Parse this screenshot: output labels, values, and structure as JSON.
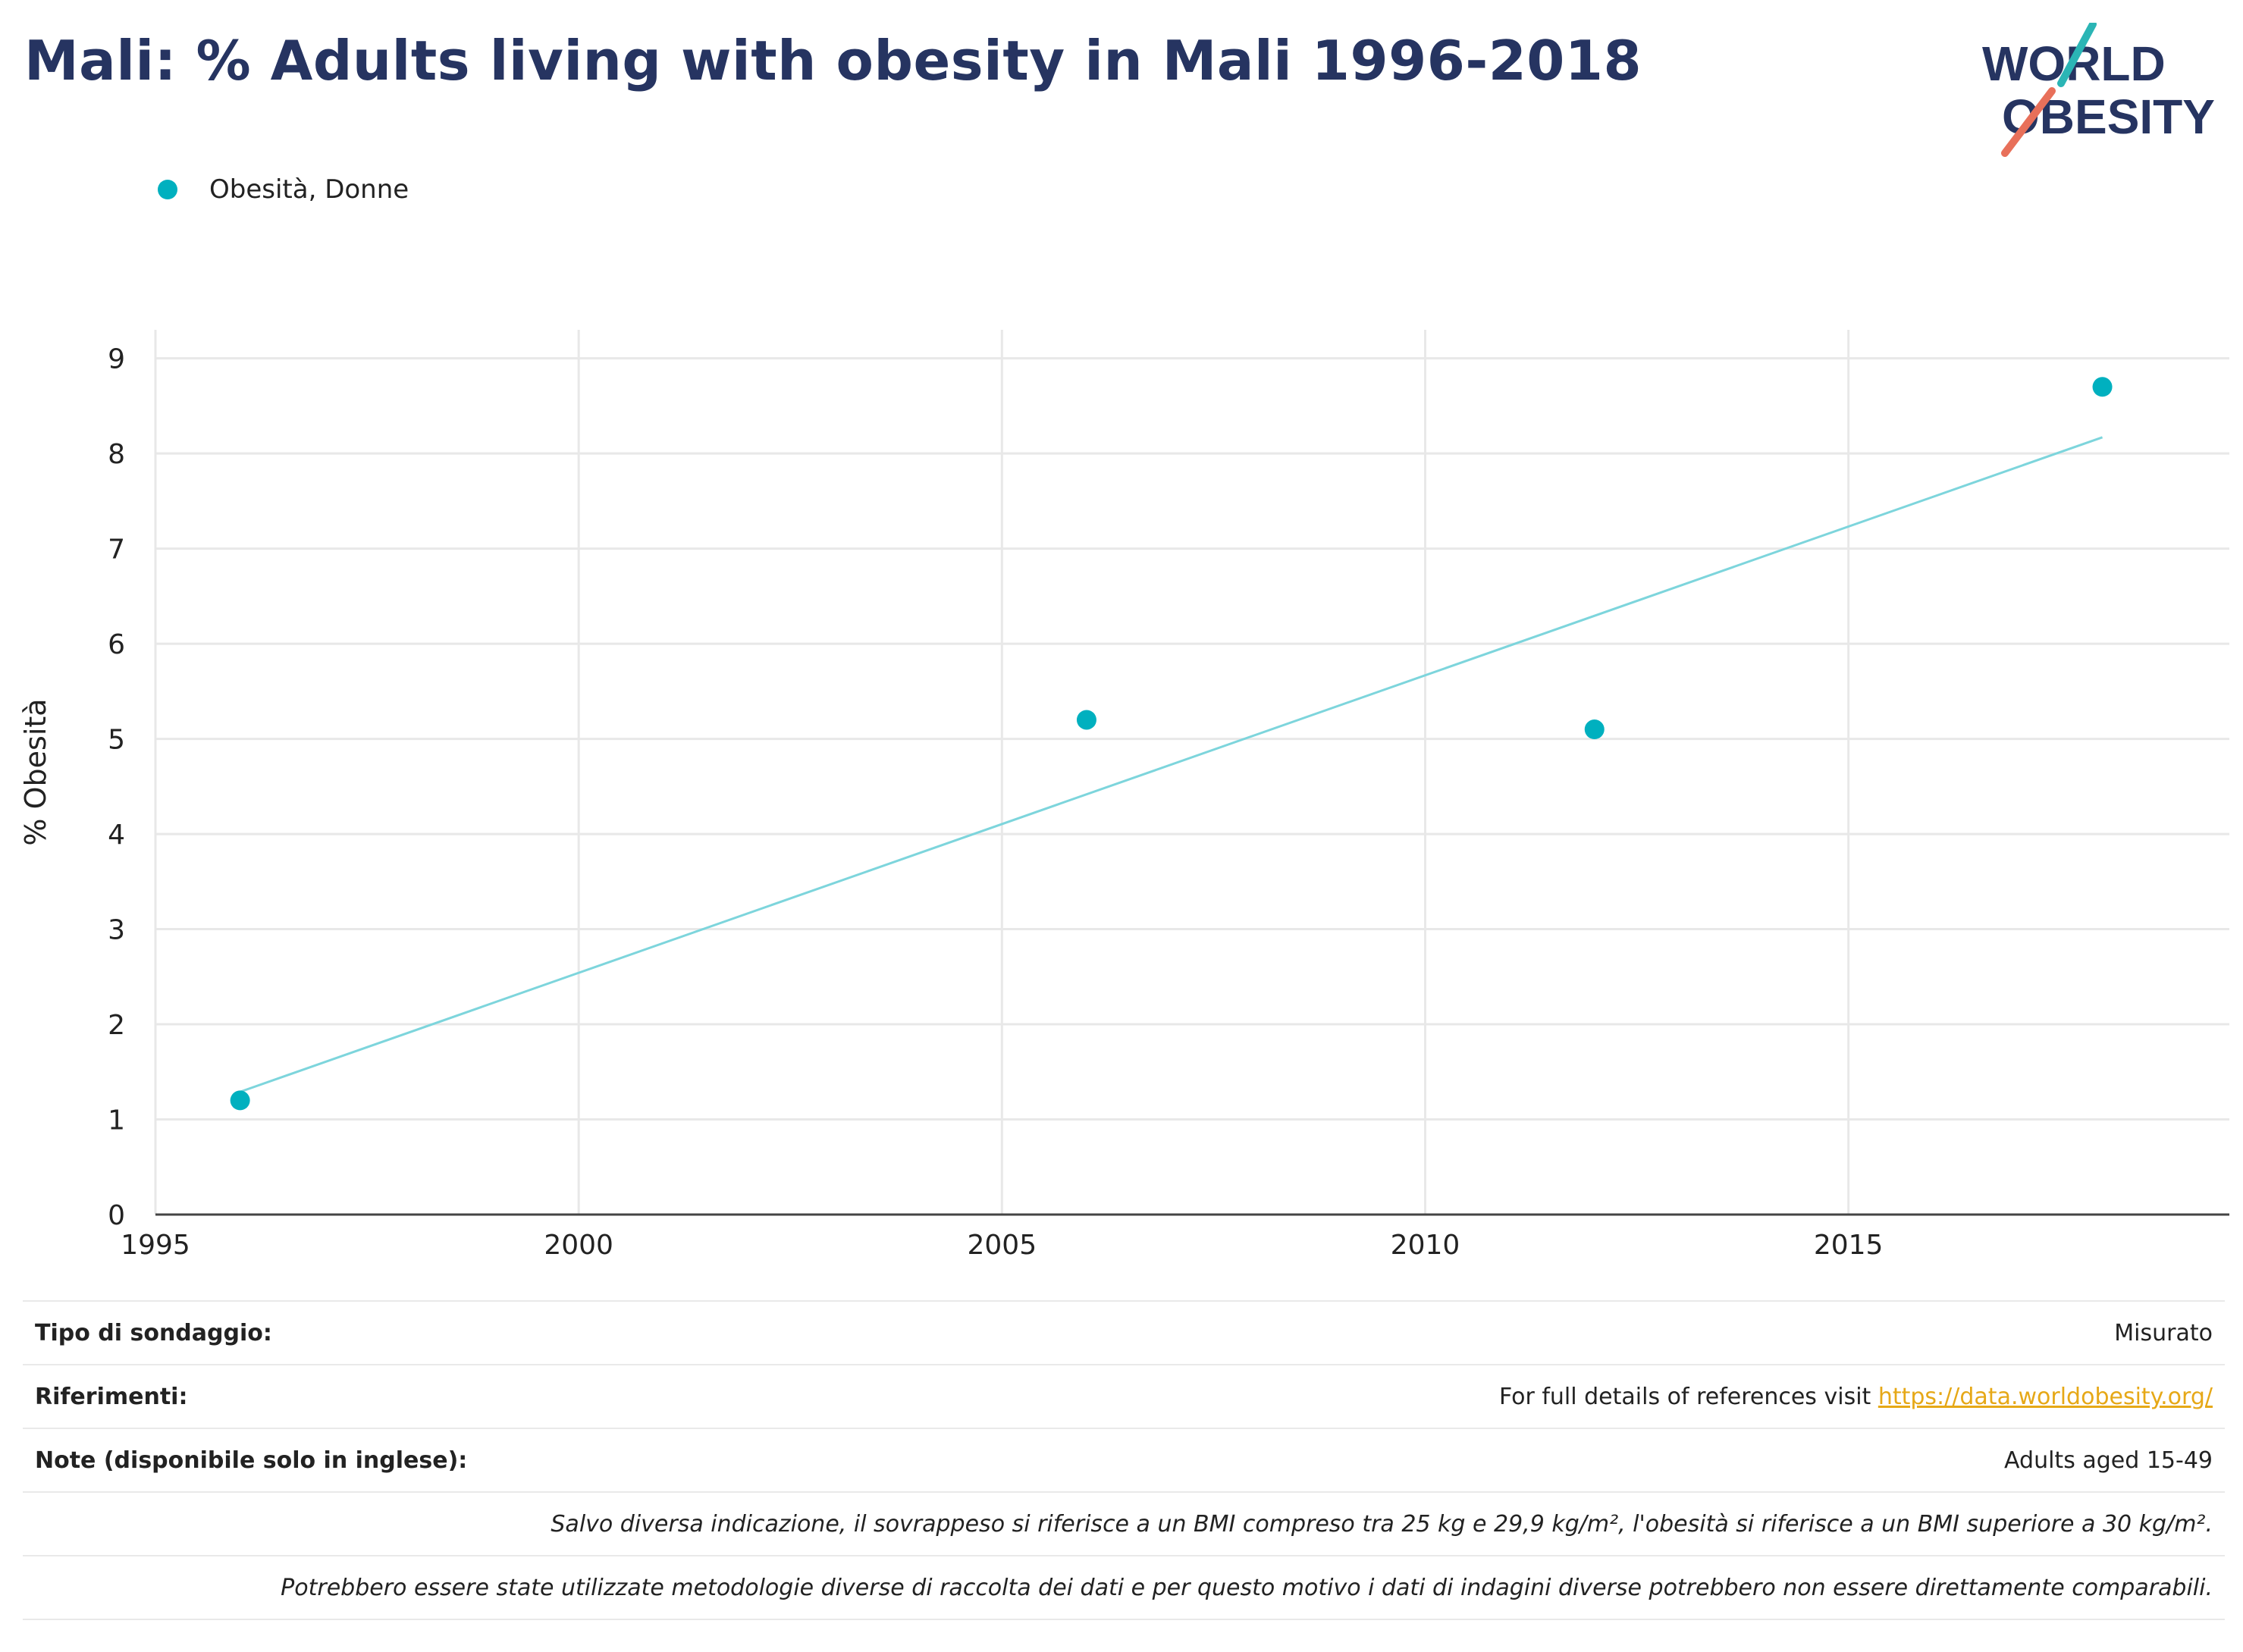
{
  "title": "Mali: % Adults living with obesity in Mali 1996-2018",
  "logo": {
    "line1": "WORLD",
    "line2": "OBESITY",
    "color_text": "#263461",
    "color_teal": "#2bb5b5",
    "color_red": "#e8705a"
  },
  "chart_data": {
    "type": "scatter",
    "ylabel": "% Obesità",
    "xlabel": "",
    "xlim": [
      1995,
      2019.5
    ],
    "ylim": [
      0,
      9.3
    ],
    "x_ticks": [
      1995,
      2000,
      2005,
      2010,
      2015
    ],
    "y_ticks": [
      0,
      1,
      2,
      3,
      4,
      5,
      6,
      7,
      8,
      9
    ],
    "grid": true,
    "legend_position": "top-left",
    "series": [
      {
        "name": "Obesità, Donne",
        "color": "#00b0bf",
        "points": [
          {
            "x": 1996,
            "y": 1.2
          },
          {
            "x": 2006,
            "y": 5.2
          },
          {
            "x": 2012,
            "y": 5.1
          },
          {
            "x": 2018,
            "y": 8.7
          }
        ],
        "trendline": {
          "color": "#7dd5dc",
          "start": {
            "x": 1996,
            "y": 1.29
          },
          "end": {
            "x": 2018,
            "y": 8.17
          }
        }
      }
    ]
  },
  "info": {
    "survey_label": "Tipo di sondaggio:",
    "survey_value": "Misurato",
    "refs_label": "Riferimenti:",
    "refs_text": "For full details of references visit ",
    "refs_link": "https://data.worldobesity.org/",
    "notes_label": "Note (disponibile solo in inglese):",
    "notes_value": "Adults aged 15-49",
    "note1": "Salvo diversa indicazione, il sovrappeso si riferisce a un BMI compreso tra 25 kg e 29,9 kg/m², l'obesità si riferisce a un BMI superiore a 30 kg/m².",
    "note2": "Potrebbero essere state utilizzate metodologie diverse di raccolta dei dati e per questo motivo i dati di indagini diverse potrebbero non essere direttamente comparabili."
  }
}
